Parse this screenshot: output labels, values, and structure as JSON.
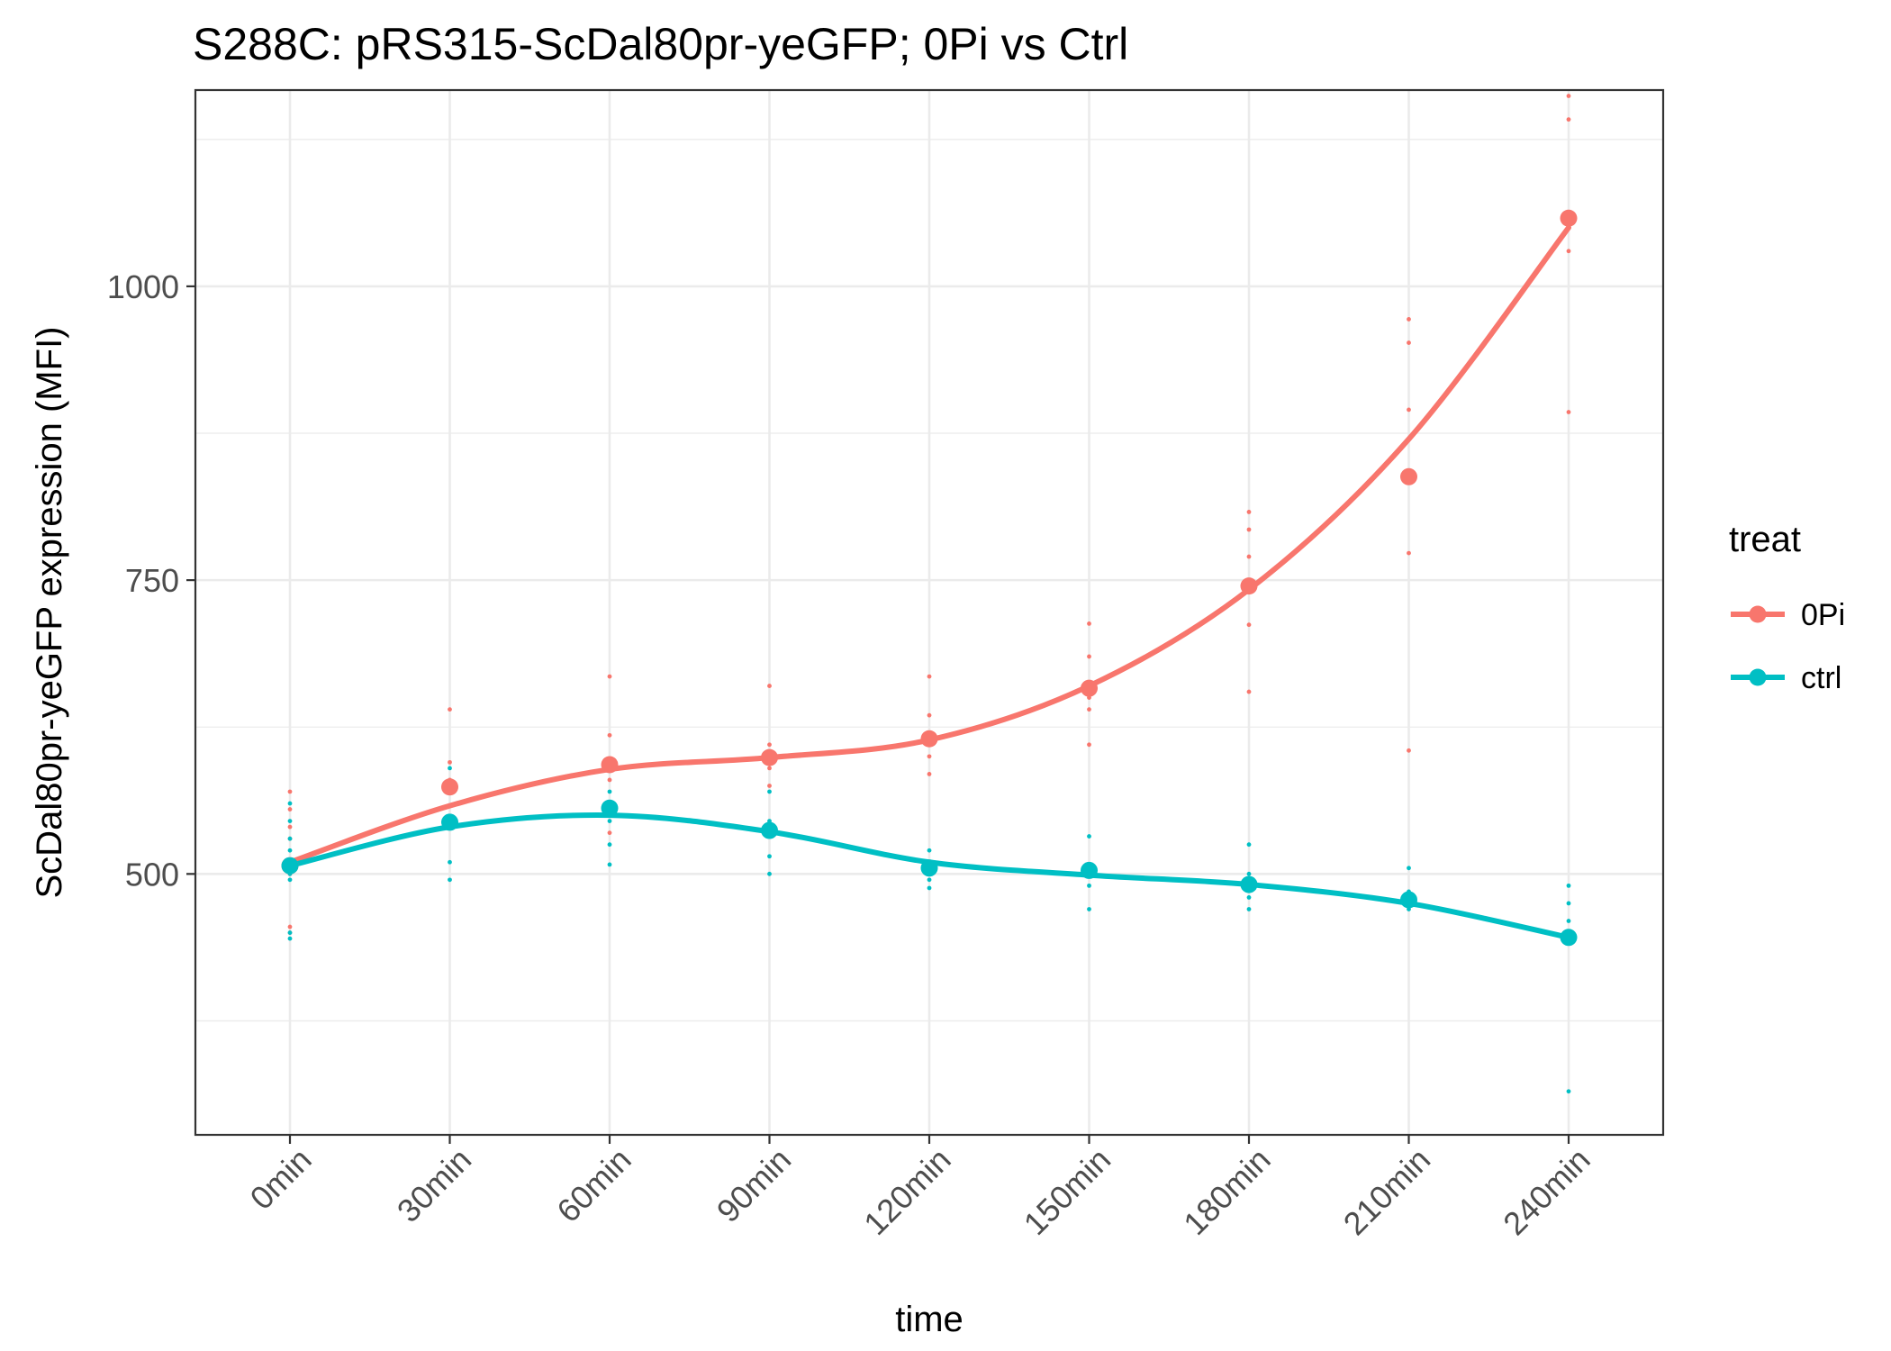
{
  "chart_data": {
    "type": "line",
    "title": "S288C: pRS315-ScDal80pr-yeGFP; 0Pi vs Ctrl",
    "xlabel": "time",
    "ylabel": "ScDal80pr-yeGFP expression (MFI)",
    "categories": [
      "0min",
      "30min",
      "60min",
      "90min",
      "120min",
      "150min",
      "180min",
      "210min",
      "240min"
    ],
    "yticks": [
      500,
      750,
      1000
    ],
    "ylim": [
      278,
      1167
    ],
    "grid": true,
    "legend": {
      "title": "treat",
      "position": "right"
    },
    "series": [
      {
        "name": "0Pi",
        "color": "#F8766D",
        "means": [
          507,
          574,
          593,
          599,
          615,
          658,
          745,
          838,
          1058
        ],
        "smooth": [
          510,
          558,
          589,
          599,
          614,
          660,
          742,
          870,
          1050
        ],
        "replicates": [
          [
            570,
            555,
            540,
            530,
            510,
            500,
            455,
            450
          ],
          [
            640,
            595,
            580,
            570,
            545
          ],
          [
            668,
            618,
            595,
            580,
            560,
            535
          ],
          [
            660,
            610,
            590,
            575
          ],
          [
            668,
            635,
            600,
            585
          ],
          [
            713,
            685,
            650,
            640,
            610
          ],
          [
            808,
            793,
            770,
            740,
            712,
            655
          ],
          [
            972,
            952,
            895,
            773,
            605
          ],
          [
            1162,
            1142,
            1030,
            893
          ]
        ]
      },
      {
        "name": "ctrl",
        "color": "#00BFC4",
        "means": [
          507,
          544,
          556,
          537,
          505,
          503,
          491,
          478,
          446
        ],
        "smooth": [
          507,
          540,
          550,
          536,
          510,
          499,
          491,
          475,
          446
        ],
        "replicates": [
          [
            560,
            545,
            530,
            520,
            500,
            495,
            450,
            445
          ],
          [
            590,
            575,
            545,
            510,
            495
          ],
          [
            570,
            545,
            525,
            508
          ],
          [
            570,
            545,
            515,
            500
          ],
          [
            520,
            510,
            495,
            488
          ],
          [
            532,
            505,
            490,
            470
          ],
          [
            525,
            500,
            480,
            470
          ],
          [
            505,
            485,
            470
          ],
          [
            490,
            475,
            460,
            450,
            315
          ]
        ]
      }
    ]
  }
}
